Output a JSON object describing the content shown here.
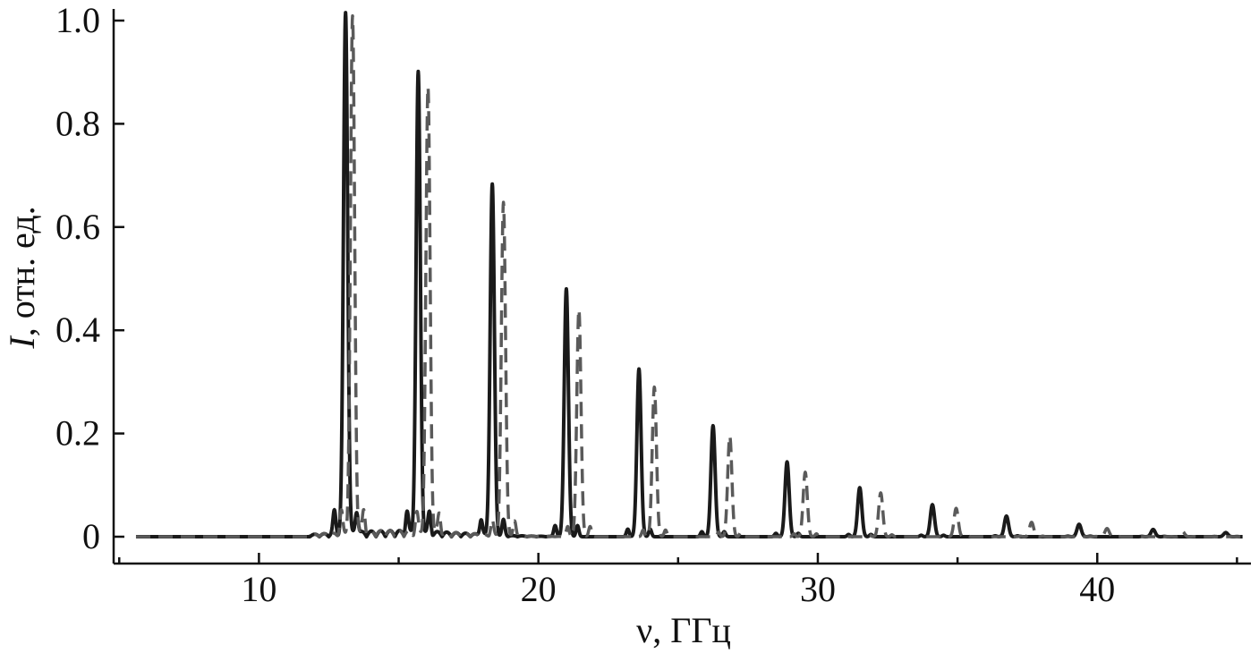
{
  "chart_data": {
    "type": "line",
    "xlabel": "ν, ГГц",
    "ylabel_italic": "I",
    "ylabel_rest": ", отн. ед.",
    "xlim": [
      4.8,
      45.5
    ],
    "ylim": [
      0,
      1.04
    ],
    "x_ticks": [
      10,
      20,
      30,
      40
    ],
    "x_tick_labels": [
      "10",
      "20",
      "30",
      "40"
    ],
    "y_ticks": [
      0,
      0.2,
      0.4,
      0.6,
      0.8,
      1.0
    ],
    "y_tick_labels": [
      "0",
      "0.2",
      "0.4",
      "0.6",
      "0.8",
      "1.0"
    ],
    "grid": false,
    "series": [
      {
        "style": "solid",
        "color": "#1a1a1a",
        "peaks": [
          {
            "x": 13.1,
            "y": 1.01
          },
          {
            "x": 15.7,
            "y": 0.89
          },
          {
            "x": 18.35,
            "y": 0.68
          },
          {
            "x": 21.0,
            "y": 0.48
          },
          {
            "x": 23.6,
            "y": 0.325
          },
          {
            "x": 26.25,
            "y": 0.215
          },
          {
            "x": 28.9,
            "y": 0.145
          },
          {
            "x": 31.5,
            "y": 0.095
          },
          {
            "x": 34.1,
            "y": 0.062
          },
          {
            "x": 36.75,
            "y": 0.04
          },
          {
            "x": 39.35,
            "y": 0.024
          },
          {
            "x": 42.0,
            "y": 0.014
          },
          {
            "x": 44.6,
            "y": 0.008
          }
        ]
      },
      {
        "style": "dashed",
        "color": "#5a5a5a",
        "peaks": [
          {
            "x": 13.35,
            "y": 1.0
          },
          {
            "x": 16.05,
            "y": 0.86
          },
          {
            "x": 18.75,
            "y": 0.645
          },
          {
            "x": 21.45,
            "y": 0.44
          },
          {
            "x": 24.15,
            "y": 0.29
          },
          {
            "x": 26.85,
            "y": 0.195
          },
          {
            "x": 29.55,
            "y": 0.125
          },
          {
            "x": 32.25,
            "y": 0.085
          },
          {
            "x": 34.95,
            "y": 0.055
          },
          {
            "x": 37.65,
            "y": 0.028
          },
          {
            "x": 40.35,
            "y": 0.016
          },
          {
            "x": 43.05,
            "y": 0.01
          }
        ]
      }
    ]
  }
}
